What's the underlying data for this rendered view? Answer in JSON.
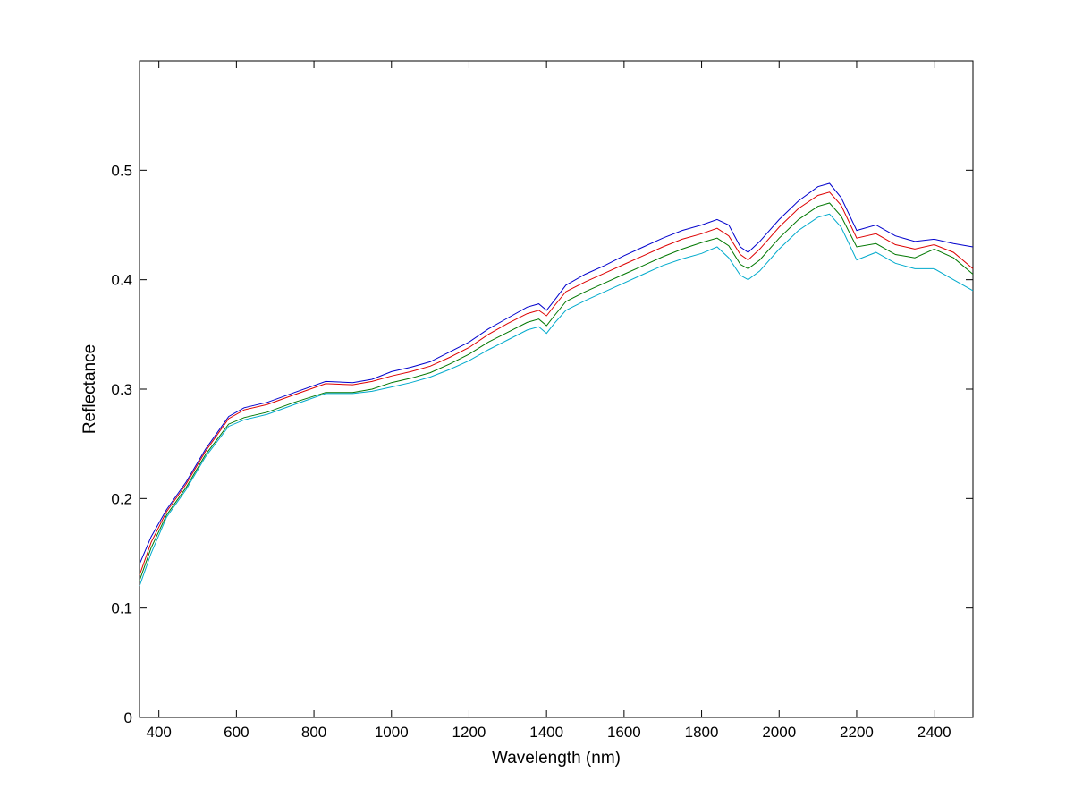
{
  "chart_data": {
    "type": "line",
    "xlabel": "Wavelength (nm)",
    "ylabel": "Reflectance",
    "xlim": [
      350,
      2500
    ],
    "ylim": [
      0,
      0.6
    ],
    "xticks": [
      400,
      600,
      800,
      1000,
      1200,
      1400,
      1600,
      1800,
      2000,
      2200,
      2400
    ],
    "yticks": [
      0,
      0.1,
      0.2,
      0.3,
      0.4,
      0.5
    ],
    "ytick_labels": [
      "0",
      "0.1",
      "0.2",
      "0.3",
      "0.4",
      "0.5"
    ],
    "grid": false,
    "legend": "none",
    "series": [
      {
        "color": "#0000cc",
        "x": [
          350,
          380,
          420,
          470,
          520,
          580,
          620,
          680,
          750,
          830,
          900,
          950,
          1000,
          1050,
          1100,
          1150,
          1200,
          1250,
          1300,
          1350,
          1380,
          1400,
          1420,
          1450,
          1500,
          1550,
          1600,
          1650,
          1700,
          1750,
          1800,
          1840,
          1870,
          1900,
          1920,
          1950,
          2000,
          2050,
          2100,
          2130,
          2160,
          2200,
          2250,
          2300,
          2350,
          2400,
          2450,
          2500
        ],
        "y": [
          0.14,
          0.165,
          0.19,
          0.215,
          0.245,
          0.275,
          0.283,
          0.288,
          0.297,
          0.307,
          0.306,
          0.309,
          0.316,
          0.32,
          0.325,
          0.334,
          0.343,
          0.355,
          0.365,
          0.375,
          0.378,
          0.372,
          0.381,
          0.395,
          0.405,
          0.413,
          0.422,
          0.43,
          0.438,
          0.445,
          0.45,
          0.455,
          0.45,
          0.43,
          0.425,
          0.435,
          0.455,
          0.472,
          0.485,
          0.488,
          0.475,
          0.445,
          0.45,
          0.44,
          0.435,
          0.437,
          0.433,
          0.43
        ]
      },
      {
        "color": "#dd0000",
        "x": [
          350,
          380,
          420,
          470,
          520,
          580,
          620,
          680,
          750,
          830,
          900,
          950,
          1000,
          1050,
          1100,
          1150,
          1200,
          1250,
          1300,
          1350,
          1380,
          1400,
          1420,
          1450,
          1500,
          1550,
          1600,
          1650,
          1700,
          1750,
          1800,
          1840,
          1870,
          1900,
          1920,
          1950,
          2000,
          2050,
          2100,
          2130,
          2160,
          2200,
          2250,
          2300,
          2350,
          2400,
          2450,
          2500
        ],
        "y": [
          0.13,
          0.16,
          0.188,
          0.213,
          0.243,
          0.273,
          0.281,
          0.286,
          0.295,
          0.305,
          0.304,
          0.307,
          0.312,
          0.316,
          0.321,
          0.329,
          0.338,
          0.35,
          0.36,
          0.369,
          0.372,
          0.367,
          0.376,
          0.389,
          0.398,
          0.406,
          0.414,
          0.422,
          0.43,
          0.437,
          0.442,
          0.447,
          0.44,
          0.423,
          0.418,
          0.428,
          0.448,
          0.465,
          0.477,
          0.48,
          0.468,
          0.438,
          0.442,
          0.432,
          0.428,
          0.432,
          0.425,
          0.41
        ]
      },
      {
        "color": "#007700",
        "x": [
          350,
          380,
          420,
          470,
          520,
          580,
          620,
          680,
          750,
          830,
          900,
          950,
          1000,
          1050,
          1100,
          1150,
          1200,
          1250,
          1300,
          1350,
          1380,
          1400,
          1420,
          1450,
          1500,
          1550,
          1600,
          1650,
          1700,
          1750,
          1800,
          1840,
          1870,
          1900,
          1920,
          1950,
          2000,
          2050,
          2100,
          2130,
          2160,
          2200,
          2250,
          2300,
          2350,
          2400,
          2450,
          2500
        ],
        "y": [
          0.125,
          0.155,
          0.185,
          0.21,
          0.24,
          0.268,
          0.274,
          0.279,
          0.288,
          0.297,
          0.297,
          0.3,
          0.306,
          0.31,
          0.315,
          0.323,
          0.332,
          0.343,
          0.352,
          0.361,
          0.364,
          0.358,
          0.367,
          0.38,
          0.389,
          0.397,
          0.405,
          0.413,
          0.421,
          0.428,
          0.434,
          0.438,
          0.431,
          0.414,
          0.41,
          0.418,
          0.438,
          0.455,
          0.467,
          0.47,
          0.458,
          0.43,
          0.433,
          0.423,
          0.42,
          0.428,
          0.42,
          0.405
        ]
      },
      {
        "color": "#00aacc",
        "x": [
          350,
          380,
          420,
          470,
          520,
          580,
          620,
          680,
          750,
          830,
          900,
          950,
          1000,
          1050,
          1100,
          1150,
          1200,
          1250,
          1300,
          1350,
          1380,
          1400,
          1420,
          1450,
          1500,
          1550,
          1600,
          1650,
          1700,
          1750,
          1800,
          1840,
          1870,
          1900,
          1920,
          1950,
          2000,
          2050,
          2100,
          2130,
          2160,
          2200,
          2250,
          2300,
          2350,
          2400,
          2450,
          2500
        ],
        "y": [
          0.12,
          0.15,
          0.183,
          0.208,
          0.238,
          0.266,
          0.272,
          0.277,
          0.286,
          0.296,
          0.296,
          0.298,
          0.302,
          0.306,
          0.311,
          0.318,
          0.326,
          0.336,
          0.345,
          0.354,
          0.357,
          0.351,
          0.36,
          0.372,
          0.381,
          0.389,
          0.397,
          0.405,
          0.413,
          0.419,
          0.424,
          0.43,
          0.42,
          0.404,
          0.4,
          0.408,
          0.428,
          0.445,
          0.457,
          0.46,
          0.448,
          0.418,
          0.425,
          0.415,
          0.41,
          0.41,
          0.4,
          0.39
        ]
      }
    ]
  }
}
